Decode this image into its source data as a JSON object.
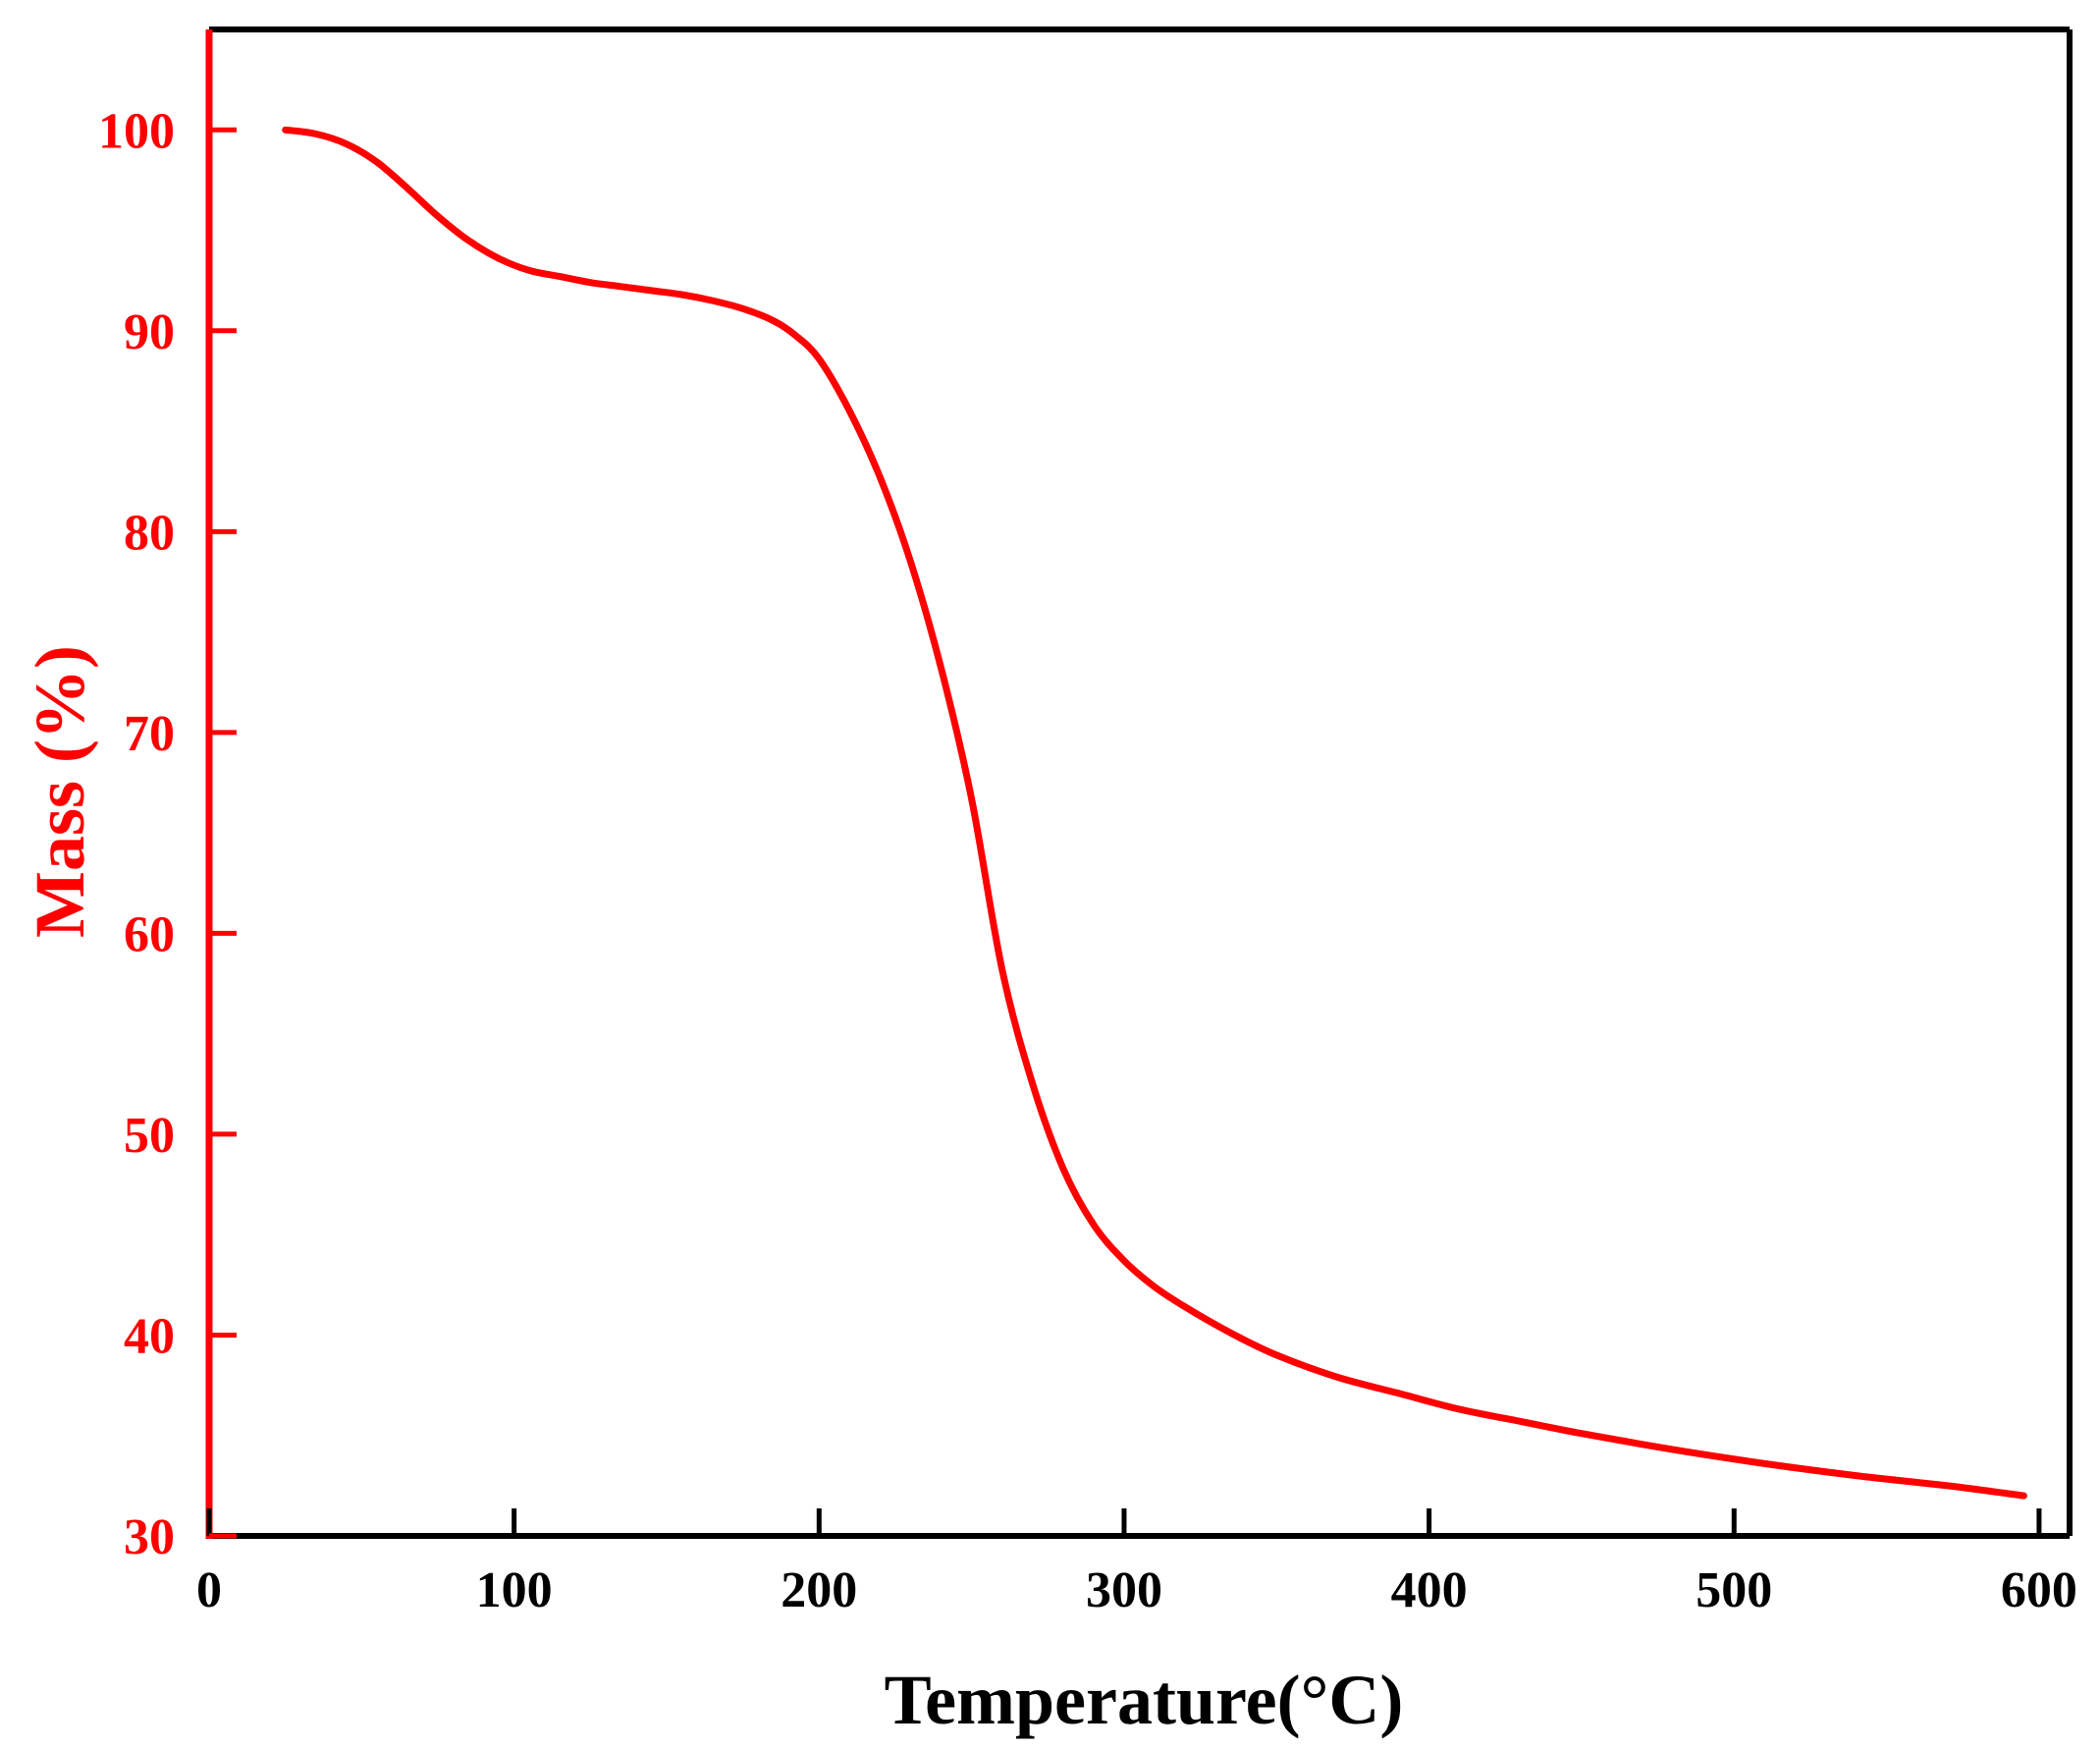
{
  "chart_data": {
    "type": "line",
    "title": "",
    "xlabel": "Temperature(°C)",
    "ylabel": "Mass (%)",
    "xlim": [
      0,
      610
    ],
    "ylim": [
      30,
      105
    ],
    "x_ticks": [
      0,
      100,
      200,
      300,
      400,
      500,
      600
    ],
    "y_ticks": [
      30,
      40,
      50,
      60,
      70,
      80,
      90,
      100
    ],
    "grid": false,
    "legend": "none",
    "colors": {
      "series": "#ff0000",
      "y_axis": "#ff0000",
      "frame": "#000000",
      "x_axis_text": "#000000"
    },
    "series": [
      {
        "x": [
          25,
          35,
          45,
          55,
          65,
          75,
          85,
          95,
          105,
          115,
          125,
          135,
          145,
          155,
          165,
          175,
          185,
          192,
          200,
          210,
          220,
          230,
          240,
          250,
          260,
          270,
          280,
          290,
          300,
          310,
          320,
          335,
          350,
          370,
          390,
          410,
          430,
          450,
          480,
          510,
          540,
          570,
          595
        ],
        "values": [
          100,
          99.8,
          99.3,
          98.4,
          97.1,
          95.7,
          94.5,
          93.6,
          93.0,
          92.7,
          92.4,
          92.2,
          92.0,
          91.8,
          91.5,
          91.1,
          90.5,
          89.8,
          88.6,
          86.0,
          82.7,
          78.5,
          73.2,
          66.7,
          58.2,
          52.5,
          48.3,
          45.5,
          43.7,
          42.4,
          41.4,
          40.1,
          39.0,
          37.9,
          37.1,
          36.3,
          35.7,
          35.1,
          34.3,
          33.6,
          33.0,
          32.5,
          32.0
        ]
      }
    ]
  }
}
